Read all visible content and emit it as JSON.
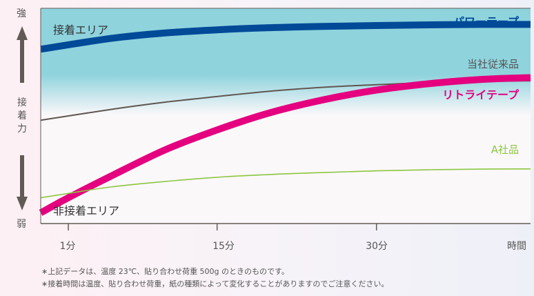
{
  "chart_data": {
    "type": "line",
    "title": "",
    "xlabel": "時間",
    "ylabel": "接着力",
    "y_top_label": "強",
    "y_bottom_label": "弱",
    "x_ticks": [
      {
        "label": "1分",
        "value": 1
      },
      {
        "label": "15分",
        "value": 15
      },
      {
        "label": "30分",
        "value": 30
      }
    ],
    "x_end_label": "時間",
    "xlim": [
      -1.6,
      44.5
    ],
    "ylim": [
      0,
      100
    ],
    "regions": [
      {
        "label": "接着エリア",
        "from": 60,
        "to": 100,
        "color": "#8fd3dd"
      },
      {
        "label": "非接着エリア",
        "from": 0,
        "to": 12
      }
    ],
    "series": [
      {
        "name": "パワーテープ",
        "color": "#004a98",
        "x": [
          -1.6,
          5,
          10,
          15,
          20,
          25,
          30,
          35,
          40,
          44.5
        ],
        "values": [
          81,
          86,
          88.5,
          90,
          91,
          91.6,
          92,
          92.3,
          92.5,
          92.5
        ]
      },
      {
        "name": "当社従来品",
        "color": "#5f5550",
        "x": [
          -1.6,
          5,
          10,
          15,
          20,
          25,
          30,
          35,
          40,
          44.5
        ],
        "values": [
          48,
          53,
          56.3,
          59,
          61.5,
          63.3,
          64.5,
          65.5,
          66,
          66.3
        ]
      },
      {
        "name": "リトライテープ",
        "color": "#e4007f",
        "x": [
          -1.6,
          1,
          5,
          10,
          15,
          20,
          25,
          30,
          35,
          40,
          44.5
        ],
        "values": [
          5,
          12,
          22,
          34,
          43.5,
          51.5,
          57.5,
          62,
          65,
          67,
          67.8
        ]
      },
      {
        "name": "A社品",
        "color": "#8cc63f",
        "x": [
          -1.6,
          1,
          5,
          10,
          15,
          20,
          25,
          30,
          35,
          40,
          44.5
        ],
        "values": [
          12,
          14,
          17,
          19.5,
          21.5,
          22.8,
          23.7,
          24.5,
          25,
          25.3,
          25.4
        ]
      }
    ],
    "grid": false,
    "legend": "inline-right"
  },
  "notes": [
    "∗上記データは、温度 23℃、貼り合わせ荷重 500g のときのものです。",
    "∗接着時間は温度、貼り合わせ荷重，紙の種類によって変化することがありますのでご注意ください。"
  ]
}
